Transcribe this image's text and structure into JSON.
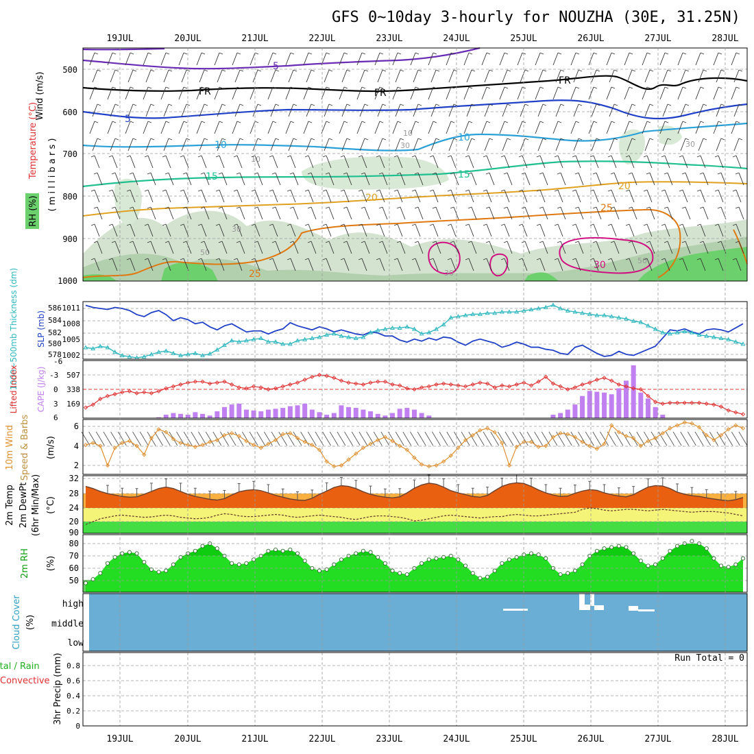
{
  "title": "GFS 0~10day 3-hourly for NOUZHA (30E, 31.25N)",
  "dates": [
    "19JUL",
    "20JUL",
    "21JUL",
    "22JUL",
    "23JUL",
    "24JUL",
    "25JUL",
    "26JUL",
    "27JUL",
    "28JUL"
  ],
  "colors": {
    "rh_fill": "#cfe3cc",
    "temp5": "#6a2bb5",
    "temp10": "#2aa0d8",
    "temp15": "#20c090",
    "temp20": "#e0a020",
    "temp25": "#e07810",
    "temp30": "#d01080",
    "slp": "#2040c8",
    "thickness": "#30b8c0",
    "lifted": "#e03030",
    "cape": "#c080f0",
    "wind10m": "#e09030",
    "temp_fill": "#e86010",
    "rh2m": "#10cc10",
    "cloud": "#6aaed6"
  },
  "panels": {
    "upper": {
      "ylabel_wind": "Wind (m/s)",
      "ylabel_temp": "Temperature (°C)",
      "ylabel_rh": "RH (%)",
      "ylabel_unit": "( m i l l i b a r s )",
      "y_ticks": [
        "500",
        "600",
        "700",
        "800",
        "900",
        "1000"
      ],
      "contour_labels": [
        "5",
        "FR",
        "5",
        "10",
        "15",
        "20",
        "25",
        "30",
        "10",
        "15",
        "20",
        "25",
        "FR",
        "FR",
        "30",
        "30",
        "30",
        "30",
        "50",
        "50",
        "10",
        "10"
      ]
    },
    "slp": {
      "ylabel_thk": "1000~500mb Thickness (dm)",
      "ylabel_slp": "SLP (mb)",
      "left_ticks": [
        "586",
        "584",
        "582",
        "580",
        "578"
      ],
      "right_ticks": [
        "1011",
        "1008",
        "1005",
        "1002"
      ]
    },
    "cape": {
      "ylabel_li": "Lifted Index",
      "ylabel_cape": "CAPE (J/kg)",
      "left_ticks": [
        "-6",
        "-3",
        "0",
        "3",
        "6"
      ],
      "right_ticks": [
        "507",
        "338",
        "169"
      ]
    },
    "wind": {
      "ylabel_a": "10m Wind",
      "ylabel_b": "Speed & Barbs",
      "ylabel_unit": "(m/s)",
      "y_ticks": [
        "6",
        "4",
        "2"
      ]
    },
    "temp": {
      "ylabel_a": "2m Temp",
      "ylabel_b": "2m DewPt",
      "ylabel_c": "(6hr Min/Max)",
      "ylabel_unit": "(°C)",
      "y_ticks": [
        "32",
        "28",
        "24",
        "20",
        "90"
      ]
    },
    "rh": {
      "ylabel": "2m RH",
      "ylabel_unit": "(%)",
      "y_ticks": [
        "80",
        "70",
        "60",
        "50"
      ]
    },
    "cloud": {
      "ylabel": "Cloud Cover",
      "ylabel_unit": "(%)",
      "levels": [
        "high",
        "middle",
        "low"
      ]
    },
    "precip": {
      "ylabel_a": "Total / Rain",
      "ylabel_b": "Convective",
      "ylabel_unit": "3hr Precip (mm)",
      "y_ticks": [
        "0.8",
        "0.6",
        "0.4",
        "0.2",
        "0"
      ],
      "run_total": "Run Total = 0"
    }
  },
  "chart_data": [
    {
      "type": "line",
      "series": [
        {
          "name": "SLP (mb)",
          "values": [
            1011.6,
            1011.2,
            1011.0,
            1010.8,
            1011.2,
            1011.0,
            1010.6,
            1009.8,
            1009.4,
            1010.2,
            1010.6,
            1009.8,
            1008.6,
            1009.2,
            1008.8,
            1008.0,
            1008.3,
            1007.4,
            1006.8,
            1007.6,
            1008.0,
            1007.2,
            1006.4,
            1006.6,
            1006.6,
            1006.0,
            1006.6,
            1007.0,
            1008.2,
            1007.6,
            1007.2,
            1006.8,
            1007.4,
            1007.0,
            1006.4,
            1006.8,
            1006.4,
            1006.0,
            1005.8,
            1006.4,
            1006.2,
            1005.6,
            1005.6,
            1004.8,
            1004.4,
            1005.0,
            1004.6,
            1005.2,
            1004.8,
            1005.4,
            1005.2,
            1004.4,
            1003.8,
            1004.6,
            1005.0,
            1004.6,
            1004.2,
            1003.4,
            1003.8,
            1004.4,
            1004.0,
            1003.4,
            1003.4,
            1003.0,
            1002.8,
            1002.2,
            1002.0,
            1003.4,
            1003.8,
            1003.0,
            1002.2,
            1001.6,
            1001.8,
            1002.6,
            1002.0,
            1001.8,
            1002.4,
            1003.0,
            1003.6,
            1005.2,
            1006.8,
            1006.6,
            1007.0,
            1006.4,
            1006.0,
            1006.8,
            1007.0,
            1006.8,
            1006.4,
            1007.2,
            1008.0
          ]
        },
        {
          "name": "1000~500mb Thickness (dm)",
          "values": [
            579.2,
            579.0,
            579.4,
            579.2,
            578.4,
            577.8,
            577.6,
            577.4,
            577.6,
            578.0,
            578.4,
            578.6,
            578.2,
            577.8,
            578.0,
            578.2,
            577.8,
            578.1,
            578.8,
            579.6,
            580.4,
            580.2,
            580.4,
            580.6,
            580.8,
            580.2,
            580.2,
            579.8,
            579.8,
            580.4,
            580.6,
            580.8,
            581.0,
            581.4,
            581.6,
            581.2,
            581.0,
            580.8,
            581.0,
            581.8,
            582.2,
            582.4,
            582.6,
            582.6,
            582.8,
            582.4,
            581.6,
            581.8,
            582.4,
            583.2,
            584.4,
            584.6,
            584.8,
            585.0,
            585.0,
            585.2,
            585.2,
            585.4,
            585.4,
            585.4,
            585.6,
            585.8,
            586.0,
            586.2,
            586.6,
            586.0,
            585.6,
            585.4,
            585.2,
            585.0,
            584.8,
            584.8,
            584.6,
            584.4,
            584.2,
            583.8,
            583.6,
            583.0,
            582.4,
            581.8,
            581.6,
            581.8,
            582.0,
            581.8,
            581.4,
            581.2,
            581.0,
            580.8,
            580.6,
            580.2,
            579.8
          ]
        }
      ]
    },
    {
      "type": "bar",
      "series": [
        {
          "name": "CAPE (J/kg)",
          "values": [
            0,
            0,
            0,
            0,
            0,
            0,
            0,
            0,
            0,
            0,
            10,
            40,
            60,
            50,
            40,
            70,
            50,
            30,
            80,
            130,
            160,
            170,
            100,
            90,
            80,
            100,
            110,
            120,
            140,
            150,
            170,
            100,
            70,
            40,
            60,
            150,
            130,
            120,
            100,
            80,
            50,
            30,
            60,
            110,
            120,
            100,
            60,
            30,
            0,
            0,
            0,
            0,
            0,
            0,
            0,
            0,
            0,
            0,
            0,
            0,
            0,
            0,
            0,
            0,
            40,
            60,
            100,
            160,
            260,
            320,
            310,
            300,
            280,
            350,
            440,
            620,
            300,
            230,
            130,
            40,
            0,
            0,
            0,
            0,
            0,
            0,
            0,
            0,
            0,
            0,
            0
          ]
        },
        {
          "name": "Lifted Index",
          "values": [
            3.8,
            3.2,
            2.0,
            1.4,
            1.0,
            0.6,
            0.4,
            0.8,
            0.6,
            0.8,
            0.4,
            -0.2,
            -0.6,
            -1.0,
            -1.4,
            -1.6,
            -1.6,
            -1.2,
            -1.4,
            -1.6,
            -1.0,
            -0.4,
            -0.2,
            -0.6,
            -0.4,
            0.0,
            -0.2,
            -0.6,
            -1.0,
            -1.4,
            -2.0,
            -2.6,
            -3.0,
            -2.8,
            -2.4,
            -1.8,
            -1.4,
            -1.2,
            -1.0,
            -1.4,
            -1.6,
            -1.6,
            -1.0,
            -0.8,
            -0.2,
            0.0,
            -0.4,
            -0.6,
            -1.0,
            -1.2,
            -1.0,
            -0.8,
            -0.6,
            -1.0,
            -1.4,
            -1.2,
            -0.4,
            -0.8,
            -0.6,
            -1.0,
            -1.4,
            -0.8,
            -1.6,
            -2.6,
            -1.2,
            -0.6,
            0.0,
            -0.4,
            -1.0,
            -1.4,
            -2.0,
            -2.4,
            -1.8,
            -1.0,
            -0.6,
            -0.2,
            0.0,
            1.4,
            2.6,
            3.0,
            2.8,
            2.8,
            2.8,
            2.8,
            2.8,
            3.0,
            3.2,
            3.6,
            4.4,
            4.8,
            5.2
          ]
        }
      ]
    },
    {
      "type": "line",
      "series": [
        {
          "name": "10m Wind",
          "values": [
            4.1,
            4.3,
            4.0,
            2.0,
            3.8,
            4.3,
            4.5,
            4.0,
            3.1,
            4.8,
            5.7,
            5.4,
            4.7,
            4.3,
            4.1,
            3.9,
            4.1,
            4.4,
            4.6,
            5.1,
            5.3,
            5.0,
            4.5,
            4.1,
            3.8,
            4.2,
            4.6,
            5.2,
            5.3,
            4.8,
            4.4,
            4.1,
            3.6,
            2.4,
            1.9,
            2.0,
            2.6,
            3.2,
            3.8,
            4.2,
            4.6,
            4.9,
            4.5,
            4.0,
            3.6,
            2.8,
            2.1,
            1.9,
            2.0,
            2.4,
            3.0,
            3.8,
            4.6,
            5.1,
            5.6,
            5.8,
            5.4,
            4.3,
            2.0,
            3.9,
            4.4,
            4.4,
            3.9,
            4.0,
            4.9,
            5.3,
            5.2,
            4.9,
            4.4,
            4.0,
            3.7,
            4.2,
            6.1,
            5.4,
            5.0,
            4.8,
            4.0,
            4.5,
            4.8,
            5.3,
            5.8,
            6.1,
            6.4,
            6.3,
            5.9,
            5.1,
            4.6,
            5.1,
            5.7,
            6.1,
            5.8
          ]
        }
      ]
    },
    {
      "type": "area",
      "series": [
        {
          "name": "2m Temp",
          "values": [
            29.8,
            29.2,
            28.4,
            27.8,
            27.4,
            27.0,
            26.8,
            26.9,
            27.6,
            28.4,
            29.2,
            29.6,
            29.2,
            28.4,
            27.6,
            27.0,
            26.6,
            26.2,
            26.0,
            26.4,
            27.4,
            28.3,
            28.7,
            28.9,
            28.6,
            28.0,
            27.3,
            26.8,
            26.3,
            26.0,
            25.9,
            26.5,
            27.6,
            28.5,
            29.5,
            30.0,
            29.8,
            29.2,
            28.3,
            27.6,
            27.1,
            26.8,
            26.6,
            26.9,
            28.0,
            29.3,
            30.2,
            30.7,
            30.4,
            29.6,
            28.6,
            28.0,
            27.5,
            27.0,
            26.8,
            27.3,
            28.6,
            29.8,
            30.5,
            30.8,
            30.6,
            29.8,
            28.8,
            28.0,
            27.4,
            27.0,
            27.1,
            27.9,
            28.5,
            28.9,
            28.7,
            28.0,
            27.5,
            27.1,
            26.9,
            27.5,
            28.6,
            29.6,
            30.0,
            29.9,
            29.2,
            28.2,
            27.6,
            27.2,
            27.0,
            26.6,
            26.3,
            26.0,
            25.8,
            26.1,
            26.7
          ]
        },
        {
          "name": "2m DewPt",
          "values": [
            19.2,
            20.0,
            20.8,
            21.2,
            21.6,
            21.8,
            21.6,
            21.4,
            21.2,
            21.3,
            21.6,
            21.8,
            21.6,
            21.2,
            21.0,
            20.8,
            20.9,
            21.2,
            21.8,
            22.2,
            22.0,
            21.6,
            21.4,
            21.4,
            21.6,
            21.8,
            22.0,
            21.8,
            21.4,
            21.2,
            21.4,
            21.6,
            21.8,
            21.6,
            21.4,
            21.2,
            20.8,
            20.6,
            21.0,
            21.4,
            21.6,
            21.6,
            21.4,
            21.2,
            20.8,
            20.2,
            20.4,
            20.8,
            21.2,
            21.6,
            21.8,
            21.6,
            21.4,
            21.2,
            21.0,
            21.2,
            21.4,
            21.4,
            21.8,
            22.0,
            21.8,
            21.6,
            21.6,
            21.8,
            22.0,
            22.2,
            22.4,
            22.6,
            23.4,
            23.8,
            23.6,
            23.2,
            23.0,
            23.2,
            23.4,
            23.4,
            23.2,
            23.0,
            23.2,
            23.4,
            23.2,
            23.0,
            22.8,
            22.6,
            22.8,
            22.8,
            22.8,
            22.6,
            22.4,
            22.0,
            21.6
          ]
        }
      ]
    },
    {
      "type": "area",
      "series": [
        {
          "name": "2m RH",
          "values": [
            48,
            51,
            56,
            64,
            69,
            72,
            73,
            72,
            65,
            59,
            57,
            58,
            63,
            69,
            72,
            74,
            78,
            80,
            76,
            70,
            64,
            63,
            64,
            67,
            70,
            74,
            75,
            74,
            75,
            72,
            66,
            60,
            58,
            59,
            63,
            67,
            70,
            72,
            74,
            73,
            69,
            64,
            58,
            56,
            55,
            60,
            64,
            67,
            68,
            69,
            70,
            67,
            62,
            56,
            52,
            53,
            58,
            64,
            67,
            69,
            71,
            72,
            71,
            68,
            60,
            55,
            56,
            58,
            63,
            70,
            74,
            76,
            77,
            78,
            77,
            72,
            66,
            62,
            63,
            68,
            74,
            78,
            80,
            82,
            80,
            76,
            68,
            62,
            61,
            63,
            68
          ]
        }
      ]
    },
    {
      "type": "bar",
      "categories": [
        "high",
        "middle",
        "low"
      ],
      "series": [
        {
          "name": "Cloud Cover",
          "values": [
            100,
            100,
            100
          ]
        }
      ]
    },
    {
      "type": "bar",
      "series": [
        {
          "name": "3hr Precip (mm)",
          "values": [
            0,
            0,
            0,
            0,
            0,
            0,
            0,
            0,
            0,
            0
          ]
        }
      ]
    }
  ]
}
